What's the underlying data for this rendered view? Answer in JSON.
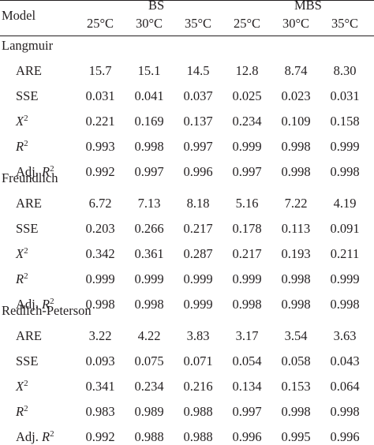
{
  "header": {
    "model_label": "Model",
    "groups": [
      "BS",
      "MBS"
    ],
    "temps": [
      "25°C",
      "30°C",
      "35°C",
      "25°C",
      "30°C",
      "35°C"
    ]
  },
  "sections": [
    {
      "name": "Langmuir",
      "rows": [
        {
          "label": "ARE",
          "values": [
            "15.7",
            "15.1",
            "14.5",
            "12.8",
            "8.74",
            "8.30"
          ]
        },
        {
          "label": "SSE",
          "values": [
            "0.031",
            "0.041",
            "0.037",
            "0.025",
            "0.023",
            "0.031"
          ]
        },
        {
          "label": "X2",
          "values": [
            "0.221",
            "0.169",
            "0.137",
            "0.234",
            "0.109",
            "0.158"
          ]
        },
        {
          "label": "R2",
          "values": [
            "0.993",
            "0.998",
            "0.997",
            "0.999",
            "0.998",
            "0.999"
          ]
        },
        {
          "label": "Adj. R2",
          "values": [
            "0.992",
            "0.997",
            "0.996",
            "0.997",
            "0.998",
            "0.998"
          ]
        }
      ]
    },
    {
      "name": "Freundlich",
      "rows": [
        {
          "label": "ARE",
          "values": [
            "6.72",
            "7.13",
            "8.18",
            "5.16",
            "7.22",
            "4.19"
          ]
        },
        {
          "label": "SSE",
          "values": [
            "0.203",
            "0.266",
            "0.217",
            "0.178",
            "0.113",
            "0.091"
          ]
        },
        {
          "label": "X2",
          "values": [
            "0.342",
            "0.361",
            "0.287",
            "0.217",
            "0.193",
            "0.211"
          ]
        },
        {
          "label": "R2",
          "values": [
            "0.999",
            "0.999",
            "0.999",
            "0.999",
            "0.998",
            "0.999"
          ]
        },
        {
          "label": "Adj. R2",
          "values": [
            "0.998",
            "0.998",
            "0.999",
            "0.998",
            "0.998",
            "0.998"
          ]
        }
      ]
    },
    {
      "name": "Redlich-Peterson",
      "rows": [
        {
          "label": "ARE",
          "values": [
            "3.22",
            "4.22",
            "3.83",
            "3.17",
            "3.54",
            "3.63"
          ]
        },
        {
          "label": "SSE",
          "values": [
            "0.093",
            "0.075",
            "0.071",
            "0.054",
            "0.058",
            "0.043"
          ]
        },
        {
          "label": "X2",
          "values": [
            "0.341",
            "0.234",
            "0.216",
            "0.134",
            "0.153",
            "0.064"
          ]
        },
        {
          "label": "R2",
          "values": [
            "0.983",
            "0.989",
            "0.988",
            "0.997",
            "0.998",
            "0.998"
          ]
        },
        {
          "label": "Adj. R2",
          "values": [
            "0.992",
            "0.988",
            "0.988",
            "0.996",
            "0.995",
            "0.996"
          ]
        }
      ]
    }
  ]
}
